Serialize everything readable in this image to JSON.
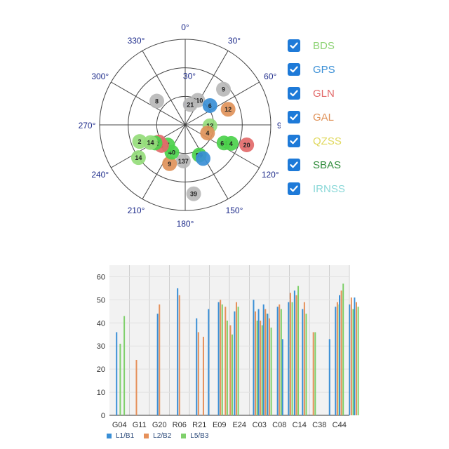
{
  "colors": {
    "BDS": "#8cd273",
    "GPS": "#3a8fd6",
    "GLN": "#e26a6a",
    "GAL": "#e0935a",
    "QZSS": "#e0d85c",
    "SBAS": "#2e8b3a",
    "IRNSS": "#8ad8d8",
    "gray": "#b8b8b8",
    "green": "#4cd14c",
    "lightgreen": "#95dc7b",
    "l1": "#3a8fd6",
    "l2": "#e6905a",
    "l5": "#7fd06b"
  },
  "skyplot": {
    "azimuth_labels": [
      {
        "deg": 0,
        "text": "0°"
      },
      {
        "deg": 30,
        "text": "30°"
      },
      {
        "deg": 60,
        "text": "60°"
      },
      {
        "deg": 90,
        "text": "90°"
      },
      {
        "deg": 120,
        "text": "120°"
      },
      {
        "deg": 150,
        "text": "150°"
      },
      {
        "deg": 180,
        "text": "180°"
      },
      {
        "deg": 210,
        "text": "210°"
      },
      {
        "deg": 240,
        "text": "240°"
      },
      {
        "deg": 270,
        "text": "270°"
      },
      {
        "deg": 300,
        "text": "300°"
      },
      {
        "deg": 330,
        "text": "330°"
      }
    ],
    "elevation_labels": [
      {
        "elev": 30,
        "text": "30°"
      },
      {
        "elev": 60,
        "text": "60°"
      }
    ],
    "satellites": [
      {
        "id": "8",
        "az": 310,
        "el": 51,
        "color": "gray"
      },
      {
        "id": "9",
        "az": 47,
        "el": 35,
        "color": "gray"
      },
      {
        "id": "210",
        "az": 27,
        "el": 61,
        "color": "gray"
      },
      {
        "id": "6",
        "az": 52,
        "el": 57,
        "color": "GPS"
      },
      {
        "id": "21",
        "az": 14,
        "el": 68,
        "color": "gray"
      },
      {
        "id": "12",
        "az": 70,
        "el": 42,
        "color": "GAL"
      },
      {
        "id": "12",
        "az": 92,
        "el": 64,
        "color": "lightgreen"
      },
      {
        "id": "4",
        "az": 110,
        "el": 65,
        "color": "GAL"
      },
      {
        "id": "64",
        "az": 115,
        "el": 45,
        "color": "green"
      },
      {
        "id": "4",
        "az": 112,
        "el": 38,
        "color": "green"
      },
      {
        "id": "20",
        "az": 108,
        "el": 22,
        "color": "GLN"
      },
      {
        "id": "59",
        "az": 155,
        "el": 55,
        "color": "green"
      },
      {
        "id": "",
        "az": 152,
        "el": 50,
        "color": "GPS"
      },
      {
        "id": "137",
        "az": 183,
        "el": 52,
        "color": "gray"
      },
      {
        "id": "39",
        "az": 173,
        "el": 17,
        "color": "gray"
      },
      {
        "id": "9",
        "az": 202,
        "el": 46,
        "color": "GAL"
      },
      {
        "id": "40",
        "az": 206,
        "el": 58,
        "color": "green"
      },
      {
        "id": "7",
        "az": 221,
        "el": 62,
        "color": "green"
      },
      {
        "id": "3",
        "az": 229,
        "el": 57,
        "color": "GLN"
      },
      {
        "id": "7",
        "az": 237,
        "el": 57,
        "color": "GLN"
      },
      {
        "id": "42",
        "az": 239,
        "el": 53,
        "color": "green"
      },
      {
        "id": "14",
        "az": 243,
        "el": 49,
        "color": "lightgreen"
      },
      {
        "id": "2",
        "az": 250,
        "el": 39,
        "color": "lightgreen"
      },
      {
        "id": "14",
        "az": 235,
        "el": 30,
        "color": "lightgreen"
      }
    ]
  },
  "legend": [
    {
      "label": "BDS",
      "color_key": "BDS"
    },
    {
      "label": "GPS",
      "color_key": "GPS"
    },
    {
      "label": "GLN",
      "color_key": "GLN"
    },
    {
      "label": "GAL",
      "color_key": "GAL"
    },
    {
      "label": "QZSS",
      "color_key": "QZSS"
    },
    {
      "label": "SBAS",
      "color_key": "SBAS"
    },
    {
      "label": "IRNSS",
      "color_key": "IRNSS"
    }
  ],
  "chart_data": {
    "type": "bar",
    "title": "",
    "xlabel": "",
    "ylabel": "",
    "ylim": [
      0,
      65
    ],
    "yticks": [
      0,
      10,
      20,
      30,
      40,
      50,
      60
    ],
    "grid": true,
    "legend_position": "bottom-left",
    "categories": [
      "G04",
      "G11",
      "G20",
      "R06",
      "R21",
      "E09",
      "E24",
      "C03",
      "C08",
      "C14",
      "C38",
      "C44"
    ],
    "series": [
      {
        "name": "L1/B1",
        "color_key": "l1"
      },
      {
        "name": "L2/B2",
        "color_key": "l2"
      },
      {
        "name": "L5/B3",
        "color_key": "l5"
      }
    ],
    "bars": [
      {
        "x": 0.95,
        "values": [
          36,
          0,
          31
        ]
      },
      {
        "x": 1.15,
        "values": [
          0,
          0,
          43
        ]
      },
      {
        "x": 1.85,
        "values": [
          0,
          24,
          0
        ]
      },
      {
        "x": 3.0,
        "values": [
          44,
          48,
          0
        ]
      },
      {
        "x": 4.0,
        "values": [
          55,
          52,
          0
        ]
      },
      {
        "x": 4.95,
        "values": [
          42,
          36,
          0
        ]
      },
      {
        "x": 5.2,
        "values": [
          0,
          34,
          0
        ]
      },
      {
        "x": 5.55,
        "values": [
          46,
          0,
          0
        ]
      },
      {
        "x": 6.05,
        "values": [
          49,
          50,
          48
        ]
      },
      {
        "x": 6.3,
        "values": [
          0,
          47,
          41
        ]
      },
      {
        "x": 6.55,
        "values": [
          0,
          39,
          35
        ]
      },
      {
        "x": 6.85,
        "values": [
          45,
          49,
          47
        ]
      },
      {
        "x": 7.8,
        "values": [
          50,
          45,
          41
        ]
      },
      {
        "x": 8.05,
        "values": [
          46,
          41,
          39
        ]
      },
      {
        "x": 8.3,
        "values": [
          48,
          46,
          44
        ]
      },
      {
        "x": 8.5,
        "values": [
          44,
          42,
          38
        ]
      },
      {
        "x": 9.0,
        "values": [
          47,
          48,
          46
        ]
      },
      {
        "x": 9.25,
        "values": [
          33,
          0,
          0
        ]
      },
      {
        "x": 9.55,
        "values": [
          49,
          53,
          49
        ]
      },
      {
        "x": 9.85,
        "values": [
          54,
          52,
          56
        ]
      },
      {
        "x": 10.25,
        "values": [
          46,
          49,
          44
        ]
      },
      {
        "x": 10.7,
        "values": [
          0,
          36,
          36
        ]
      },
      {
        "x": 11.6,
        "values": [
          33,
          0,
          0
        ]
      },
      {
        "x": 11.9,
        "values": [
          47,
          49,
          48
        ]
      },
      {
        "x": 12.1,
        "values": [
          52,
          54,
          57
        ]
      },
      {
        "x": 12.6,
        "values": [
          48,
          51,
          46
        ]
      },
      {
        "x": 12.85,
        "values": [
          51,
          49,
          47
        ]
      }
    ]
  }
}
